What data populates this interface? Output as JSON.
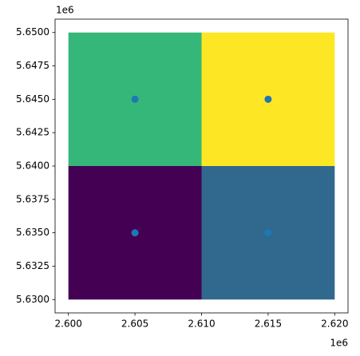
{
  "chart_data": {
    "type": "scatter",
    "x_offset_label": "1e6",
    "y_offset_label": "1e6",
    "xlim": [
      2.599,
      2.621
    ],
    "ylim": [
      5.629,
      5.651
    ],
    "xticks": [
      {
        "value": 2.6,
        "label": "2.600"
      },
      {
        "value": 2.605,
        "label": "2.605"
      },
      {
        "value": 2.61,
        "label": "2.610"
      },
      {
        "value": 2.615,
        "label": "2.615"
      },
      {
        "value": 2.62,
        "label": "2.620"
      }
    ],
    "yticks": [
      {
        "value": 5.63,
        "label": "5.6300"
      },
      {
        "value": 5.6325,
        "label": "5.6325"
      },
      {
        "value": 5.635,
        "label": "5.6350"
      },
      {
        "value": 5.6375,
        "label": "5.6375"
      },
      {
        "value": 5.64,
        "label": "5.6400"
      },
      {
        "value": 5.6425,
        "label": "5.6425"
      },
      {
        "value": 5.645,
        "label": "5.6450"
      },
      {
        "value": 5.6475,
        "label": "5.6475"
      },
      {
        "value": 5.65,
        "label": "5.6500"
      }
    ],
    "raster": [
      {
        "x": [
          2.6,
          2.61
        ],
        "y": [
          5.64,
          5.65
        ],
        "color": "#35b779"
      },
      {
        "x": [
          2.61,
          2.62
        ],
        "y": [
          5.64,
          5.65
        ],
        "color": "#fde725"
      },
      {
        "x": [
          2.6,
          2.61
        ],
        "y": [
          5.63,
          5.64
        ],
        "color": "#440154"
      },
      {
        "x": [
          2.61,
          2.62
        ],
        "y": [
          5.63,
          5.64
        ],
        "color": "#31688e"
      }
    ],
    "series": [
      {
        "color": "#1f77b4",
        "x": [
          2.605,
          2.615,
          2.605,
          2.615
        ],
        "values": [
          5.645,
          5.645,
          5.635,
          5.635
        ]
      }
    ]
  }
}
